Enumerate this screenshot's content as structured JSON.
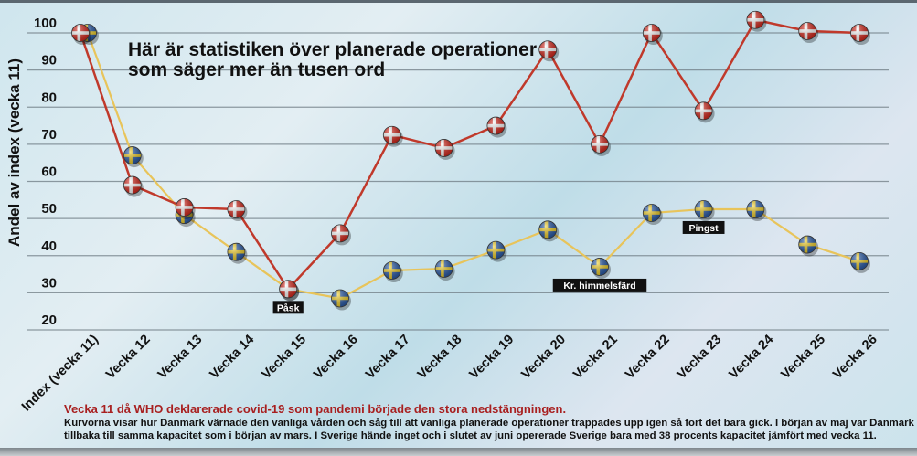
{
  "chart_data": {
    "type": "line",
    "title": "Här är statistiken över planerade operationer som säger mer än tusen ord",
    "ylabel": "Andel av index (vecka 11)",
    "xlabel": "",
    "ylim": [
      20,
      100
    ],
    "yticks": [
      100,
      90,
      80,
      70,
      60,
      50,
      40,
      30,
      20
    ],
    "grid": true,
    "categories": [
      "Index (vecka 11)",
      "Vecka 12",
      "Vecka 13",
      "Vecka 14",
      "Vecka 15",
      "Vecka 16",
      "Vecka 17",
      "Vecka 18",
      "Vecka 19",
      "Vecka 20",
      "Vecka 21",
      "Vecka 22",
      "Vecka 23",
      "Vecka 24",
      "Vecka 25",
      "Vecka 26"
    ],
    "series": [
      {
        "marker": "danish-flag",
        "color": "#c0392b",
        "values": [
          100,
          59,
          53,
          52.5,
          31,
          46,
          72.5,
          69,
          75,
          95.5,
          70,
          100,
          79,
          103.5,
          100.5,
          100
        ]
      },
      {
        "marker": "swedish-flag",
        "color": "#e8c45a",
        "values": [
          100,
          67,
          51,
          41,
          31,
          28.5,
          36,
          36.5,
          41.5,
          47,
          37,
          51.5,
          52.5,
          52.5,
          43,
          38.5
        ]
      }
    ],
    "annotations": [
      {
        "category": "Vecka 15",
        "text": "Påsk"
      },
      {
        "category": "Vecka 21",
        "text": "Kr. himmelsfärd"
      },
      {
        "category": "Vecka 23",
        "text": "Pingst"
      }
    ]
  },
  "caption": {
    "headline": "Vecka 11 då WHO deklarerade covid-19 som pandemi började den stora nedstängningen.",
    "body": "Kurvorna visar hur Danmark värnade den vanliga vården och såg till att vanliga planerade operationer trappades upp igen så fort det bara gick. I början av maj var Danmark tillbaka till samma kapacitet som i början av mars. I Sverige hände inget och i slutet av juni opererade Sverige bara med 38 procents kapacitet jämfört med vecka 11."
  }
}
